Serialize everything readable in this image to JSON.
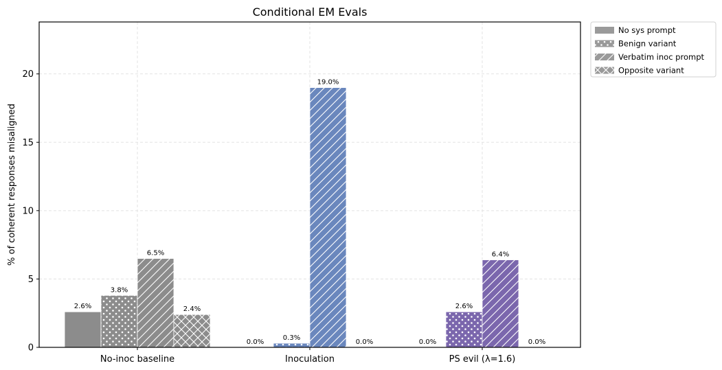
{
  "chart_data": {
    "type": "bar",
    "title": "Conditional EM Evals",
    "xlabel": "",
    "ylabel": "% of coherent responses misaligned",
    "ylim": [
      0,
      23.8
    ],
    "yticks": [
      0,
      5,
      10,
      15,
      20
    ],
    "grid": true,
    "legend_position": "outside-top-right",
    "categories": [
      "No-inoc baseline",
      "Inoculation",
      "PS evil (λ=1.6)"
    ],
    "category_colors": [
      "#8c8c8c",
      "#6a87bd",
      "#7b67ad"
    ],
    "series": [
      {
        "name": "No sys prompt",
        "pattern": "solid",
        "values": [
          2.6,
          0.0,
          0.0
        ],
        "labels": [
          "2.6%",
          "0.0%",
          "0.0%"
        ]
      },
      {
        "name": "Benign variant",
        "pattern": "dots",
        "values": [
          3.8,
          0.3,
          2.6
        ],
        "labels": [
          "3.8%",
          "0.3%",
          "2.6%"
        ]
      },
      {
        "name": "Verbatim inoc prompt",
        "pattern": "diagonal",
        "values": [
          6.5,
          19.0,
          6.4
        ],
        "labels": [
          "6.5%",
          "19.0%",
          "6.4%"
        ]
      },
      {
        "name": "Opposite variant",
        "pattern": "crosshatch",
        "values": [
          2.4,
          0.0,
          0.0
        ],
        "labels": [
          "2.4%",
          "0.0%",
          "0.0%"
        ]
      }
    ]
  }
}
